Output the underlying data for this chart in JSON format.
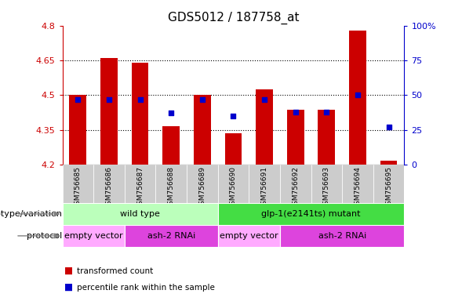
{
  "title": "GDS5012 / 187758_at",
  "samples": [
    "GSM756685",
    "GSM756686",
    "GSM756687",
    "GSM756688",
    "GSM756689",
    "GSM756690",
    "GSM756691",
    "GSM756692",
    "GSM756693",
    "GSM756694",
    "GSM756695"
  ],
  "bar_values": [
    4.5,
    4.66,
    4.64,
    4.365,
    4.5,
    4.335,
    4.525,
    4.435,
    4.435,
    4.78,
    4.215
  ],
  "bar_bottom": 4.2,
  "dot_pct": [
    47,
    47,
    47,
    37,
    47,
    35,
    47,
    38,
    38,
    50,
    27
  ],
  "ylim_left": [
    4.2,
    4.8
  ],
  "ylim_right": [
    0,
    100
  ],
  "yticks_left": [
    4.2,
    4.35,
    4.5,
    4.65,
    4.8
  ],
  "yticks_right": [
    0,
    25,
    50,
    75,
    100
  ],
  "ytick_labels_left": [
    "4.2",
    "4.35",
    "4.5",
    "4.65",
    "4.8"
  ],
  "ytick_labels_right": [
    "0",
    "25",
    "50",
    "75",
    "100%"
  ],
  "bar_color": "#cc0000",
  "dot_color": "#0000cc",
  "bg_color": "#ffffff",
  "plot_bg_color": "#ffffff",
  "grid_yticks": [
    4.35,
    4.5,
    4.65
  ],
  "genotype_groups": [
    {
      "label": "wild type",
      "start": 0,
      "end": 5,
      "color": "#bbffbb"
    },
    {
      "label": "glp-1(e2141ts) mutant",
      "start": 5,
      "end": 11,
      "color": "#44dd44"
    }
  ],
  "protocol_groups": [
    {
      "label": "empty vector",
      "start": 0,
      "end": 2,
      "color": "#ffaaff"
    },
    {
      "label": "ash-2 RNAi",
      "start": 2,
      "end": 5,
      "color": "#dd44dd"
    },
    {
      "label": "empty vector",
      "start": 5,
      "end": 7,
      "color": "#ffaaff"
    },
    {
      "label": "ash-2 RNAi",
      "start": 7,
      "end": 11,
      "color": "#dd44dd"
    }
  ],
  "legend_items": [
    {
      "label": "transformed count",
      "color": "#cc0000"
    },
    {
      "label": "percentile rank within the sample",
      "color": "#0000cc"
    }
  ],
  "genotype_label": "genotype/variation",
  "protocol_label": "protocol",
  "xtick_bg_color": "#cccccc",
  "bar_width": 0.55,
  "dot_size": 20,
  "title_fontsize": 11,
  "ytick_fontsize": 8,
  "xtick_fontsize": 6.5,
  "label_fontsize": 8,
  "group_text_fontsize": 8
}
